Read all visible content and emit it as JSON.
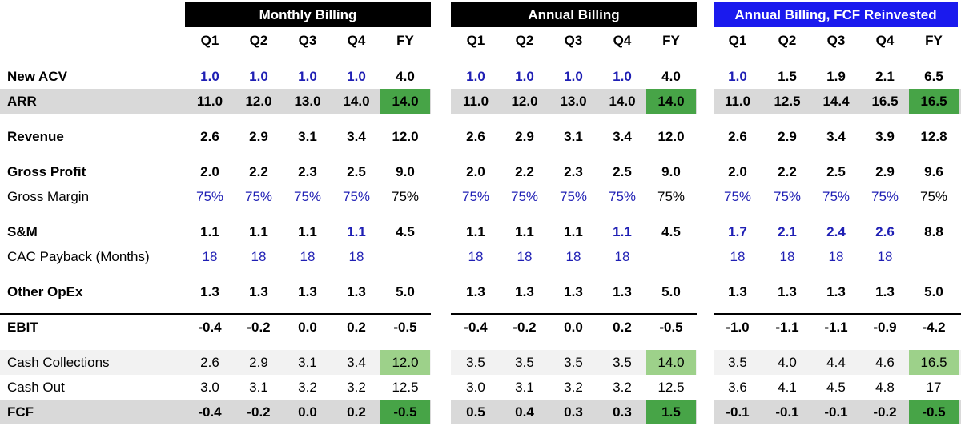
{
  "sections": [
    {
      "title": "Monthly Billing",
      "bg": "#000000"
    },
    {
      "title": "Annual Billing",
      "bg": "#000000"
    },
    {
      "title": "Annual Billing, FCF Reinvested",
      "bg": "#1a1aee"
    }
  ],
  "column_headers": [
    "Q1",
    "Q2",
    "Q3",
    "Q4",
    "FY"
  ],
  "colors": {
    "blue_input": "#1f1fb4",
    "highlight_green": "#47a447",
    "highlight_light_green": "#9dd18a",
    "band_gray": "#d9d9d9",
    "band_light_gray": "#f2f2f2"
  },
  "rows": [
    {
      "label": "New ACV",
      "values": [
        [
          "1.0",
          "1.0",
          "1.0",
          "1.0",
          "4.0"
        ],
        [
          "1.0",
          "1.0",
          "1.0",
          "1.0",
          "4.0"
        ],
        [
          "1.0",
          "1.5",
          "1.9",
          "2.1",
          "6.5"
        ]
      ]
    },
    {
      "label": "ARR",
      "values": [
        [
          "11.0",
          "12.0",
          "13.0",
          "14.0",
          "14.0"
        ],
        [
          "11.0",
          "12.0",
          "13.0",
          "14.0",
          "14.0"
        ],
        [
          "11.0",
          "12.5",
          "14.4",
          "16.5",
          "16.5"
        ]
      ]
    },
    {
      "label": "Revenue",
      "values": [
        [
          "2.6",
          "2.9",
          "3.1",
          "3.4",
          "12.0"
        ],
        [
          "2.6",
          "2.9",
          "3.1",
          "3.4",
          "12.0"
        ],
        [
          "2.6",
          "2.9",
          "3.4",
          "3.9",
          "12.8"
        ]
      ]
    },
    {
      "label": "Gross Profit",
      "values": [
        [
          "2.0",
          "2.2",
          "2.3",
          "2.5",
          "9.0"
        ],
        [
          "2.0",
          "2.2",
          "2.3",
          "2.5",
          "9.0"
        ],
        [
          "2.0",
          "2.2",
          "2.5",
          "2.9",
          "9.6"
        ]
      ]
    },
    {
      "label": "Gross Margin",
      "values": [
        [
          "75%",
          "75%",
          "75%",
          "75%",
          "75%"
        ],
        [
          "75%",
          "75%",
          "75%",
          "75%",
          "75%"
        ],
        [
          "75%",
          "75%",
          "75%",
          "75%",
          "75%"
        ]
      ]
    },
    {
      "label": "S&M",
      "values": [
        [
          "1.1",
          "1.1",
          "1.1",
          "1.1",
          "4.5"
        ],
        [
          "1.1",
          "1.1",
          "1.1",
          "1.1",
          "4.5"
        ],
        [
          "1.7",
          "2.1",
          "2.4",
          "2.6",
          "8.8"
        ]
      ]
    },
    {
      "label": "CAC Payback (Months)",
      "values": [
        [
          "18",
          "18",
          "18",
          "18",
          ""
        ],
        [
          "18",
          "18",
          "18",
          "18",
          ""
        ],
        [
          "18",
          "18",
          "18",
          "18",
          ""
        ]
      ]
    },
    {
      "label": "Other OpEx",
      "values": [
        [
          "1.3",
          "1.3",
          "1.3",
          "1.3",
          "5.0"
        ],
        [
          "1.3",
          "1.3",
          "1.3",
          "1.3",
          "5.0"
        ],
        [
          "1.3",
          "1.3",
          "1.3",
          "1.3",
          "5.0"
        ]
      ]
    },
    {
      "label": "EBIT",
      "values": [
        [
          "-0.4",
          "-0.2",
          "0.0",
          "0.2",
          "-0.5"
        ],
        [
          "-0.4",
          "-0.2",
          "0.0",
          "0.2",
          "-0.5"
        ],
        [
          "-1.0",
          "-1.1",
          "-1.1",
          "-0.9",
          "-4.2"
        ]
      ]
    },
    {
      "label": "Cash Collections",
      "values": [
        [
          "2.6",
          "2.9",
          "3.1",
          "3.4",
          "12.0"
        ],
        [
          "3.5",
          "3.5",
          "3.5",
          "3.5",
          "14.0"
        ],
        [
          "3.5",
          "4.0",
          "4.4",
          "4.6",
          "16.5"
        ]
      ]
    },
    {
      "label": "Cash Out",
      "values": [
        [
          "3.0",
          "3.1",
          "3.2",
          "3.2",
          "12.5"
        ],
        [
          "3.0",
          "3.1",
          "3.2",
          "3.2",
          "12.5"
        ],
        [
          "3.6",
          "4.1",
          "4.5",
          "4.8",
          "17"
        ]
      ]
    },
    {
      "label": "FCF",
      "values": [
        [
          "-0.4",
          "-0.2",
          "0.0",
          "0.2",
          "-0.5"
        ],
        [
          "0.5",
          "0.4",
          "0.3",
          "0.3",
          "1.5"
        ],
        [
          "-0.1",
          "-0.1",
          "-0.1",
          "-0.2",
          "-0.5"
        ]
      ]
    }
  ]
}
